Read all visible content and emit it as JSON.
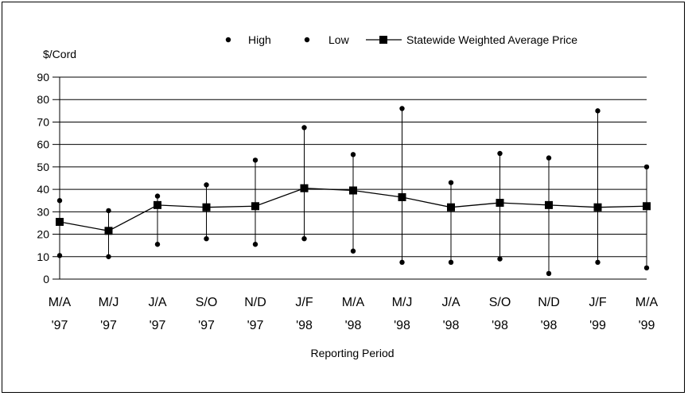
{
  "chart_data": {
    "type": "line",
    "ylabel": "$/Cord",
    "xlabel": "Reporting Period",
    "ylim": [
      0,
      90
    ],
    "yticks": [
      0,
      10,
      20,
      30,
      40,
      50,
      60,
      70,
      80,
      90
    ],
    "grid": true,
    "legend_placement": "top",
    "categories": [
      [
        "M/A",
        "'97"
      ],
      [
        "M/J",
        "'97"
      ],
      [
        "J/A",
        "'97"
      ],
      [
        "S/O",
        "'97"
      ],
      [
        "N/D",
        "'97"
      ],
      [
        "J/F",
        "'98"
      ],
      [
        "M/A",
        "'98"
      ],
      [
        "M/J",
        "'98"
      ],
      [
        "J/A",
        "'98"
      ],
      [
        "S/O",
        "'98"
      ],
      [
        "N/D",
        "'98"
      ],
      [
        "J/F",
        "'99"
      ],
      [
        "M/A",
        "'99"
      ]
    ],
    "series": [
      {
        "name": "High",
        "marker": "dot",
        "values": [
          35,
          30.5,
          37,
          42,
          53,
          67.5,
          55.5,
          76,
          43,
          56,
          54,
          75,
          50
        ]
      },
      {
        "name": "Low",
        "marker": "dot",
        "values": [
          10.5,
          10,
          15.5,
          18,
          15.5,
          18,
          12.5,
          7.5,
          7.5,
          9,
          2.5,
          7.5,
          5
        ]
      },
      {
        "name": "Statewide Weighted Average Price",
        "marker": "square",
        "values": [
          25.5,
          21.5,
          33,
          32,
          32.5,
          40.5,
          39.5,
          36.5,
          32,
          34,
          33,
          32,
          32.5
        ]
      }
    ],
    "colors": {
      "line": "#000000",
      "grid": "#000000",
      "background": "#ffffff"
    }
  }
}
